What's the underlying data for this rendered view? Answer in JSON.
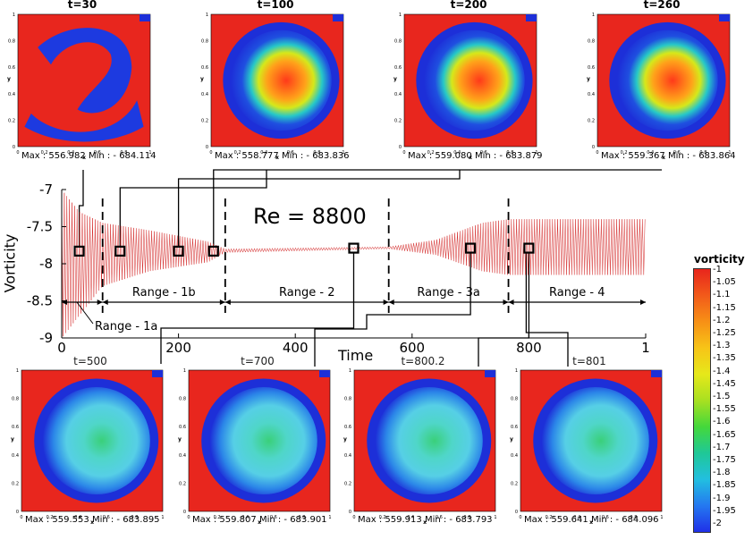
{
  "annotation": "Re = 8800",
  "chart_data": {
    "type": "line",
    "xlabel": "Time",
    "ylabel": "Vorticity",
    "xlim": [
      0,
      1000
    ],
    "ylim": [
      -9,
      -7
    ],
    "x_ticks": [
      "0",
      "200",
      "400",
      "600",
      "800",
      "1"
    ],
    "y_ticks": [
      "-7",
      "-7.5",
      "-8",
      "-8.5",
      "-9"
    ],
    "ranges": [
      {
        "label": "Range - 1a",
        "start": 0,
        "end": 70
      },
      {
        "label": "Range - 1b",
        "start": 70,
        "end": 280
      },
      {
        "label": "Range - 2",
        "start": 280,
        "end": 560
      },
      {
        "label": "Range - 3a",
        "start": 560,
        "end": 765
      },
      {
        "label": "Range - 4",
        "start": 765,
        "end": 1000
      }
    ],
    "markers": [
      {
        "t": 30,
        "value": -7.83
      },
      {
        "t": 100,
        "value": -7.83
      },
      {
        "t": 200,
        "value": -7.83
      },
      {
        "t": 260,
        "value": -7.83
      },
      {
        "t": 500,
        "value": -7.79
      },
      {
        "t": 700,
        "value": -7.79
      },
      {
        "t": 800,
        "value": -7.79
      }
    ],
    "envelope": [
      {
        "t": 0,
        "min": -9.0,
        "max": -7.0
      },
      {
        "t": 30,
        "min": -8.7,
        "max": -7.3
      },
      {
        "t": 70,
        "min": -8.3,
        "max": -7.45
      },
      {
        "t": 150,
        "min": -8.1,
        "max": -7.55
      },
      {
        "t": 250,
        "min": -7.98,
        "max": -7.7
      },
      {
        "t": 280,
        "min": -7.85,
        "max": -7.8
      },
      {
        "t": 560,
        "min": -7.8,
        "max": -7.77
      },
      {
        "t": 640,
        "min": -7.88,
        "max": -7.68
      },
      {
        "t": 720,
        "min": -8.1,
        "max": -7.45
      },
      {
        "t": 765,
        "min": -8.15,
        "max": -7.4
      },
      {
        "t": 1000,
        "min": -8.15,
        "max": -7.4
      }
    ]
  },
  "top_snapshots": [
    {
      "title": "t=30",
      "max": "556.982",
      "min": "- 684.114"
    },
    {
      "title": "t=100",
      "max": "558.777",
      "min": "- 683.836"
    },
    {
      "title": "t=200",
      "max": "559.080",
      "min": "- 683.879"
    },
    {
      "title": "t=260",
      "max": "559.367",
      "min": "- 683.864"
    }
  ],
  "bottom_snapshots": [
    {
      "title": "t=500",
      "max": "559.553",
      "min": "- 683.895"
    },
    {
      "title": "t=700",
      "max": "559.807",
      "min": "- 683.901"
    },
    {
      "title": "t=800.2",
      "max": "559.913",
      "min": "- 683.793"
    },
    {
      "title": "t=801",
      "max": "559.641",
      "min": "- 684.096"
    }
  ],
  "labels": {
    "max": "Max :",
    "min": "Min :",
    "x_axis": "x",
    "y_axis": "y"
  },
  "panel_ticks": {
    "x": [
      "0",
      "0.2",
      "0.4",
      "0.6",
      "0.8",
      "1"
    ],
    "y": [
      "0",
      "0.2",
      "0.4",
      "0.6",
      "0.8",
      "1"
    ]
  },
  "colorbar": {
    "title": "vorticity",
    "ticks": [
      "-1",
      "-1.05",
      "-1.1",
      "-1.15",
      "-1.2",
      "-1.25",
      "-1.3",
      "-1.35",
      "-1.4",
      "-1.45",
      "-1.5",
      "-1.55",
      "-1.6",
      "-1.65",
      "-1.7",
      "-1.75",
      "-1.8",
      "-1.85",
      "-1.9",
      "-1.95",
      "-2"
    ],
    "colors": [
      "#e8251c",
      "#f25a1a",
      "#f79016",
      "#f7c417",
      "#e6e81a",
      "#a8e021",
      "#44d83b",
      "#1fc897",
      "#22bfe0",
      "#2478f0",
      "#2030e8"
    ]
  },
  "colors": {
    "signal": "#d42a2a",
    "frame": "#000000"
  }
}
